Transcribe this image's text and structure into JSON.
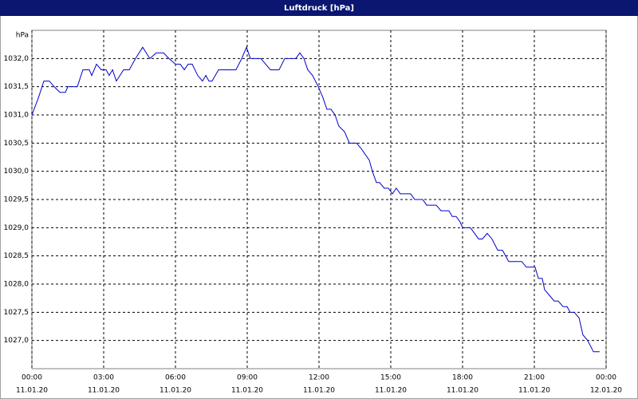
{
  "chart_data": {
    "type": "line",
    "title": "Luftdruck [hPa]",
    "y_label": "hPa",
    "x": [
      0,
      0.27,
      0.5,
      0.73,
      0.93,
      1.17,
      1.4,
      1.5,
      1.9,
      2.13,
      2.4,
      2.5,
      2.7,
      2.9,
      3.1,
      3.23,
      3.37,
      3.53,
      3.83,
      4.07,
      4.33,
      4.63,
      4.93,
      5.2,
      5.5,
      5.73,
      6,
      6.2,
      6.37,
      6.53,
      6.7,
      6.93,
      7.13,
      7.27,
      7.4,
      7.53,
      7.8,
      8.53,
      8.77,
      8.97,
      9.13,
      9.57,
      9.97,
      10.33,
      10.57,
      11.03,
      11.2,
      11.37,
      11.53,
      11.73,
      11.97,
      12.17,
      12.33,
      12.5,
      12.67,
      12.83,
      13.07,
      13.27,
      13.57,
      13.77,
      13.93,
      14.1,
      14.23,
      14.4,
      14.53,
      14.73,
      14.9,
      15.07,
      15.23,
      15.4,
      15.83,
      16,
      16.33,
      16.5,
      16.9,
      17.1,
      17.43,
      17.57,
      17.73,
      17.9,
      18,
      18.33,
      18.67,
      18.83,
      19.03,
      19.23,
      19.47,
      19.67,
      19.93,
      20.47,
      20.67,
      21.03,
      21.17,
      21.33,
      21.43,
      21.63,
      21.83,
      22,
      22.2,
      22.37,
      22.5,
      22.67,
      22.87,
      23.03,
      23.23,
      23.47,
      23.73
    ],
    "series": [
      {
        "name": "Luftdruck",
        "color": "#0000cc",
        "values": [
          1031.0,
          1031.3,
          1031.6,
          1031.6,
          1031.5,
          1031.4,
          1031.4,
          1031.5,
          1031.5,
          1031.8,
          1031.8,
          1031.7,
          1031.9,
          1031.8,
          1031.8,
          1031.7,
          1031.8,
          1031.6,
          1031.8,
          1031.8,
          1032.0,
          1032.2,
          1032.0,
          1032.1,
          1032.1,
          1032.0,
          1031.9,
          1031.9,
          1031.8,
          1031.9,
          1031.9,
          1031.7,
          1031.6,
          1031.7,
          1031.6,
          1031.6,
          1031.8,
          1031.8,
          1032.0,
          1032.2,
          1032.0,
          1032.0,
          1031.8,
          1031.8,
          1032.0,
          1032.0,
          1032.1,
          1032.0,
          1031.8,
          1031.7,
          1031.5,
          1031.3,
          1031.1,
          1031.1,
          1031.0,
          1030.8,
          1030.7,
          1030.5,
          1030.5,
          1030.4,
          1030.3,
          1030.2,
          1030.0,
          1029.8,
          1029.8,
          1029.7,
          1029.7,
          1029.6,
          1029.7,
          1029.6,
          1029.6,
          1029.5,
          1029.5,
          1029.4,
          1029.4,
          1029.3,
          1029.3,
          1029.2,
          1029.2,
          1029.1,
          1029.0,
          1029.0,
          1028.8,
          1028.8,
          1028.9,
          1028.8,
          1028.6,
          1028.6,
          1028.4,
          1028.4,
          1028.3,
          1028.3,
          1028.1,
          1028.1,
          1027.9,
          1027.8,
          1027.7,
          1027.7,
          1027.6,
          1027.6,
          1027.5,
          1027.5,
          1027.4,
          1027.1,
          1027.0,
          1026.8,
          1026.8
        ]
      }
    ],
    "xlim": [
      0,
      24
    ],
    "xticks": [
      {
        "value": 0,
        "label": "00:00"
      },
      {
        "value": 3,
        "label": "03:00"
      },
      {
        "value": 6,
        "label": "06:00"
      },
      {
        "value": 9,
        "label": "09:00"
      },
      {
        "value": 12,
        "label": "12:00"
      },
      {
        "value": 15,
        "label": "15:00"
      },
      {
        "value": 18,
        "label": "18:00"
      },
      {
        "value": 21,
        "label": "21:00"
      },
      {
        "value": 24,
        "label": "00:00"
      }
    ],
    "xtick_dates": [
      "11.01.20",
      "11.01.20",
      "11.01.20",
      "11.01.20",
      "11.01.20",
      "11.01.20",
      "11.01.20",
      "11.01.20",
      "12.01.20"
    ],
    "ylim": [
      1026.5,
      1032.5
    ],
    "yticks": [
      {
        "value": 1027,
        "label": "1027,0"
      },
      {
        "value": 1027.5,
        "label": "1027,5"
      },
      {
        "value": 1028,
        "label": "1028,0"
      },
      {
        "value": 1028.5,
        "label": "1028,5"
      },
      {
        "value": 1029,
        "label": "1029,0"
      },
      {
        "value": 1029.5,
        "label": "1029,5"
      },
      {
        "value": 1030,
        "label": "1030,0"
      },
      {
        "value": 1030.5,
        "label": "1030,5"
      },
      {
        "value": 1031,
        "label": "1031,0"
      },
      {
        "value": 1031.5,
        "label": "1031,5"
      },
      {
        "value": 1032,
        "label": "1032,0"
      }
    ],
    "grid": true
  }
}
